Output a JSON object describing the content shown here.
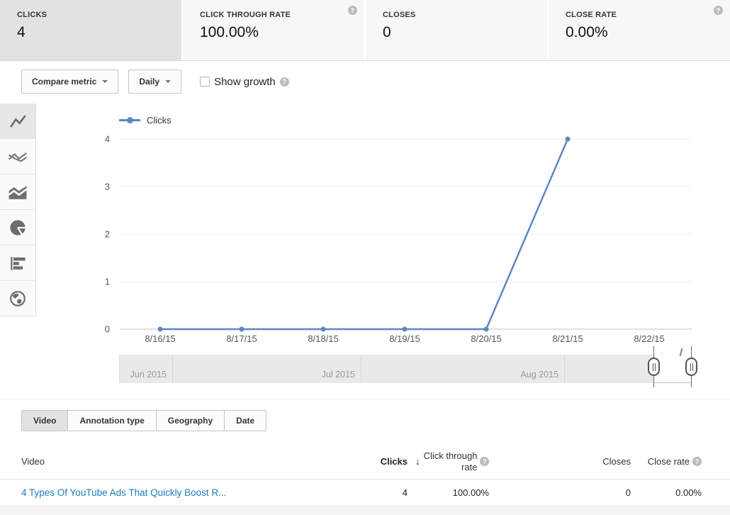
{
  "accent_color": "#5b87c5",
  "link_color": "#1f7bc0",
  "metrics": [
    {
      "label": "CLICKS",
      "value": "4",
      "selected": true,
      "has_help": false
    },
    {
      "label": "CLICK THROUGH RATE",
      "value": "100.00%",
      "selected": false,
      "has_help": true
    },
    {
      "label": "CLOSES",
      "value": "0",
      "selected": false,
      "has_help": false
    },
    {
      "label": "CLOSE RATE",
      "value": "0.00%",
      "selected": false,
      "has_help": true
    }
  ],
  "controls": {
    "compare_metric_label": "Compare metric",
    "interval_label": "Daily",
    "show_growth_label": "Show growth",
    "show_growth_checked": false,
    "help_glyph": "?"
  },
  "chart_types": [
    "line-chart",
    "multi-line-chart",
    "stacked-area-chart",
    "pie-chart",
    "bar-chart",
    "geo-map"
  ],
  "chart_data": {
    "type": "line",
    "title": "",
    "xlabel": "",
    "ylabel": "",
    "categories": [
      "8/16/15",
      "8/17/15",
      "8/18/15",
      "8/19/15",
      "8/20/15",
      "8/21/15",
      "8/22/15"
    ],
    "series": [
      {
        "name": "Clicks",
        "color": "#5b87c5",
        "values": [
          0,
          0,
          0,
          0,
          0,
          4,
          null
        ]
      }
    ],
    "ylim": [
      0,
      4
    ],
    "yticks": [
      0,
      1,
      2,
      3,
      4
    ],
    "grid": true,
    "legend_position": "top-left"
  },
  "scrubber": {
    "months": [
      "Jun 2015",
      "Jul 2015",
      "Aug 2015"
    ]
  },
  "tabs": [
    {
      "label": "Video",
      "selected": true
    },
    {
      "label": "Annotation type",
      "selected": false
    },
    {
      "label": "Geography",
      "selected": false
    },
    {
      "label": "Date",
      "selected": false
    }
  ],
  "table": {
    "headers": {
      "video": "Video",
      "clicks": "Clicks",
      "sort_arrow": "↓",
      "ctr": "Click through rate",
      "closes": "Closes",
      "close_rate": "Close rate"
    },
    "sorted_by": "Clicks",
    "rows": [
      {
        "video": "4 Types Of YouTube Ads That Quickly Boost R...",
        "clicks": "4",
        "ctr": "100.00%",
        "closes": "0",
        "close_rate": "0.00%"
      }
    ]
  }
}
